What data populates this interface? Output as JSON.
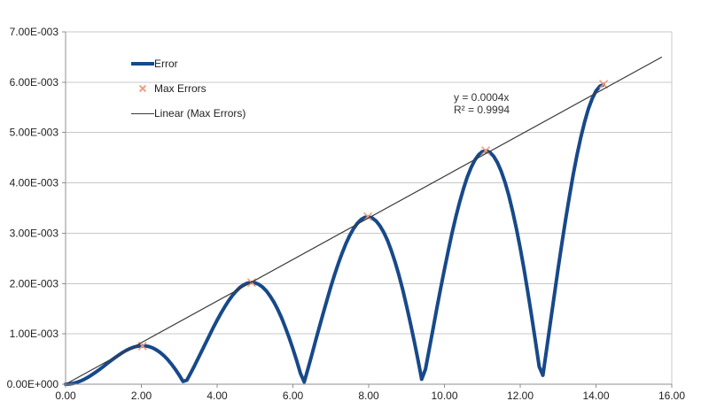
{
  "window": {
    "background": "#ffffff"
  },
  "chart_data": {
    "type": "line",
    "title": "",
    "xlabel": "",
    "ylabel": "",
    "x_axis": {
      "min": 0,
      "max": 16,
      "tick_step": 2,
      "tick_labels": [
        "0.00",
        "2.00",
        "4.00",
        "6.00",
        "8.00",
        "10.00",
        "12.00",
        "14.00",
        "16.00"
      ]
    },
    "y_axis": {
      "min": 0,
      "max": 0.007,
      "tick_step": 0.001,
      "tick_labels": [
        "0.00E+000",
        "1.00E-003",
        "2.00E-003",
        "3.00E-003",
        "4.00E-003",
        "5.00E-003",
        "6.00E-003",
        "7.00E-003"
      ]
    },
    "grid": "horizontal-only",
    "legend_position": "inside-top-left",
    "colors": {
      "error_line": "#17498a",
      "max_marker": "#f29b7c",
      "trendline": "#3b3b3b",
      "grid": "#c8c8c8",
      "axis": "#8f8f8f",
      "label": "#1f1f1f"
    },
    "series": [
      {
        "name": "Error",
        "type": "line",
        "stroke_width": 4,
        "model": {
          "formula": "y = 0.00042 * |x * sin(x)|",
          "scale": 0.00042,
          "x_start": 0,
          "x_end": 14.2,
          "sample_step": 0.1
        },
        "zero_crossings_x": [
          0,
          3.1416,
          6.2832,
          9.4248,
          12.5664
        ],
        "peak_points": [
          [
            2.03,
            0.00076
          ],
          [
            4.91,
            0.00202
          ],
          [
            7.98,
            0.00333
          ],
          [
            11.09,
            0.00464
          ],
          [
            14.2,
            0.00596
          ]
        ]
      },
      {
        "name": "Max Errors",
        "type": "scatter",
        "marker": "x",
        "points": [
          [
            2.03,
            0.00076
          ],
          [
            4.91,
            0.00202
          ],
          [
            7.98,
            0.00333
          ],
          [
            11.09,
            0.00464
          ],
          [
            14.2,
            0.00596
          ]
        ]
      },
      {
        "name": "Linear (Max Errors)",
        "type": "linear-trendline",
        "slope": 0.000413,
        "intercept": 0,
        "x_start": 0,
        "x_end": 15.74,
        "equation": "y = 0.0004x",
        "r_squared": "R² = 0.9994"
      }
    ]
  },
  "legend": {
    "items": [
      {
        "label": "Error"
      },
      {
        "label": "Max Errors"
      },
      {
        "label": "Linear (Max Errors)"
      }
    ]
  },
  "annotation": {
    "line1": "y = 0.0004x",
    "line2": "R² = 0.9994"
  }
}
